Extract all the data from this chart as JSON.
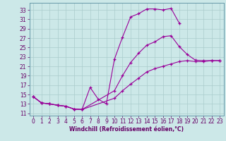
{
  "xlabel": "Windchill (Refroidissement éolien,°C)",
  "bg_color": "#cce8e8",
  "grid_color": "#aacccc",
  "line_color": "#990099",
  "xlim": [
    -0.5,
    23.5
  ],
  "ylim": [
    10.5,
    34.5
  ],
  "xticks": [
    0,
    1,
    2,
    3,
    4,
    5,
    6,
    7,
    8,
    9,
    10,
    11,
    12,
    13,
    14,
    15,
    16,
    17,
    18,
    19,
    20,
    21,
    22,
    23
  ],
  "yticks": [
    11,
    13,
    15,
    17,
    19,
    21,
    23,
    25,
    27,
    29,
    31,
    33
  ],
  "curve1_x": [
    0,
    1,
    2,
    3,
    4,
    5,
    6,
    7,
    8,
    9,
    10,
    11,
    12,
    13,
    14,
    15,
    16,
    17,
    18
  ],
  "curve1_y": [
    14.5,
    13.2,
    13.0,
    12.7,
    12.5,
    11.9,
    11.8,
    16.5,
    14.0,
    13.0,
    22.5,
    27.2,
    31.5,
    32.2,
    33.2,
    33.2,
    33.0,
    33.3,
    30.2
  ],
  "curve2_x": [
    0,
    1,
    2,
    3,
    4,
    5,
    6,
    10,
    11,
    12,
    13,
    14,
    15,
    16,
    17,
    18,
    19,
    20,
    21,
    22,
    23
  ],
  "curve2_y": [
    14.5,
    13.2,
    13.0,
    12.7,
    12.5,
    11.9,
    11.8,
    15.8,
    19.0,
    21.8,
    23.8,
    25.5,
    26.2,
    27.3,
    27.5,
    25.2,
    23.5,
    22.3,
    22.2,
    22.2,
    22.2
  ],
  "curve3_x": [
    0,
    1,
    2,
    3,
    4,
    5,
    6,
    10,
    11,
    12,
    13,
    14,
    15,
    16,
    17,
    18,
    19,
    20,
    21,
    22,
    23
  ],
  "curve3_y": [
    14.5,
    13.2,
    13.0,
    12.7,
    12.5,
    11.9,
    11.8,
    14.2,
    15.8,
    17.2,
    18.5,
    19.8,
    20.5,
    21.0,
    21.5,
    22.0,
    22.2,
    22.0,
    22.0,
    22.2,
    22.2
  ],
  "marker": "+",
  "markersize": 3,
  "linewidth": 0.8,
  "tick_fontsize": 5.5,
  "xlabel_fontsize": 5.5
}
